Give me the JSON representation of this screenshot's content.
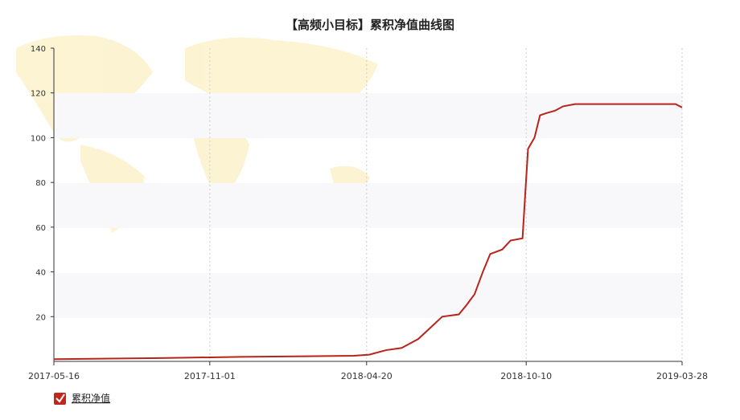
{
  "chart_data": {
    "type": "line",
    "title": "【高频小目标】累积净值曲线图",
    "x": [
      "2017-05-16",
      "2017-09-09",
      "2017-12-05",
      "2018-04-06",
      "2018-04-23",
      "2018-05-11",
      "2018-05-28",
      "2018-06-15",
      "2018-06-28",
      "2018-07-11",
      "2018-07-29",
      "2018-08-06",
      "2018-08-15",
      "2018-08-24",
      "2018-09-01",
      "2018-09-14",
      "2018-09-23",
      "2018-10-06",
      "2018-10-12",
      "2018-10-19",
      "2018-10-25",
      "2018-11-01",
      "2018-11-10",
      "2018-11-19",
      "2018-12-02",
      "2019-03-21",
      "2019-03-28"
    ],
    "series": [
      {
        "name": "累积净值",
        "color": "#b8231b",
        "values": [
          1,
          1.5,
          2,
          2.5,
          3,
          5,
          6,
          10,
          15,
          20,
          21,
          25,
          30,
          40,
          48,
          50,
          54,
          55,
          95,
          100,
          110,
          111,
          112,
          114,
          115,
          115,
          113.5
        ]
      }
    ],
    "xlim": [
      "2017-05-16",
      "2019-03-28"
    ],
    "xticks": [
      "2017-05-16",
      "2017-11-01",
      "2018-04-20",
      "2018-10-10",
      "2019-03-28"
    ],
    "ylim": [
      0,
      140
    ],
    "yticks": [
      20,
      40,
      60,
      80,
      100,
      120,
      140
    ],
    "grid": true
  }
}
